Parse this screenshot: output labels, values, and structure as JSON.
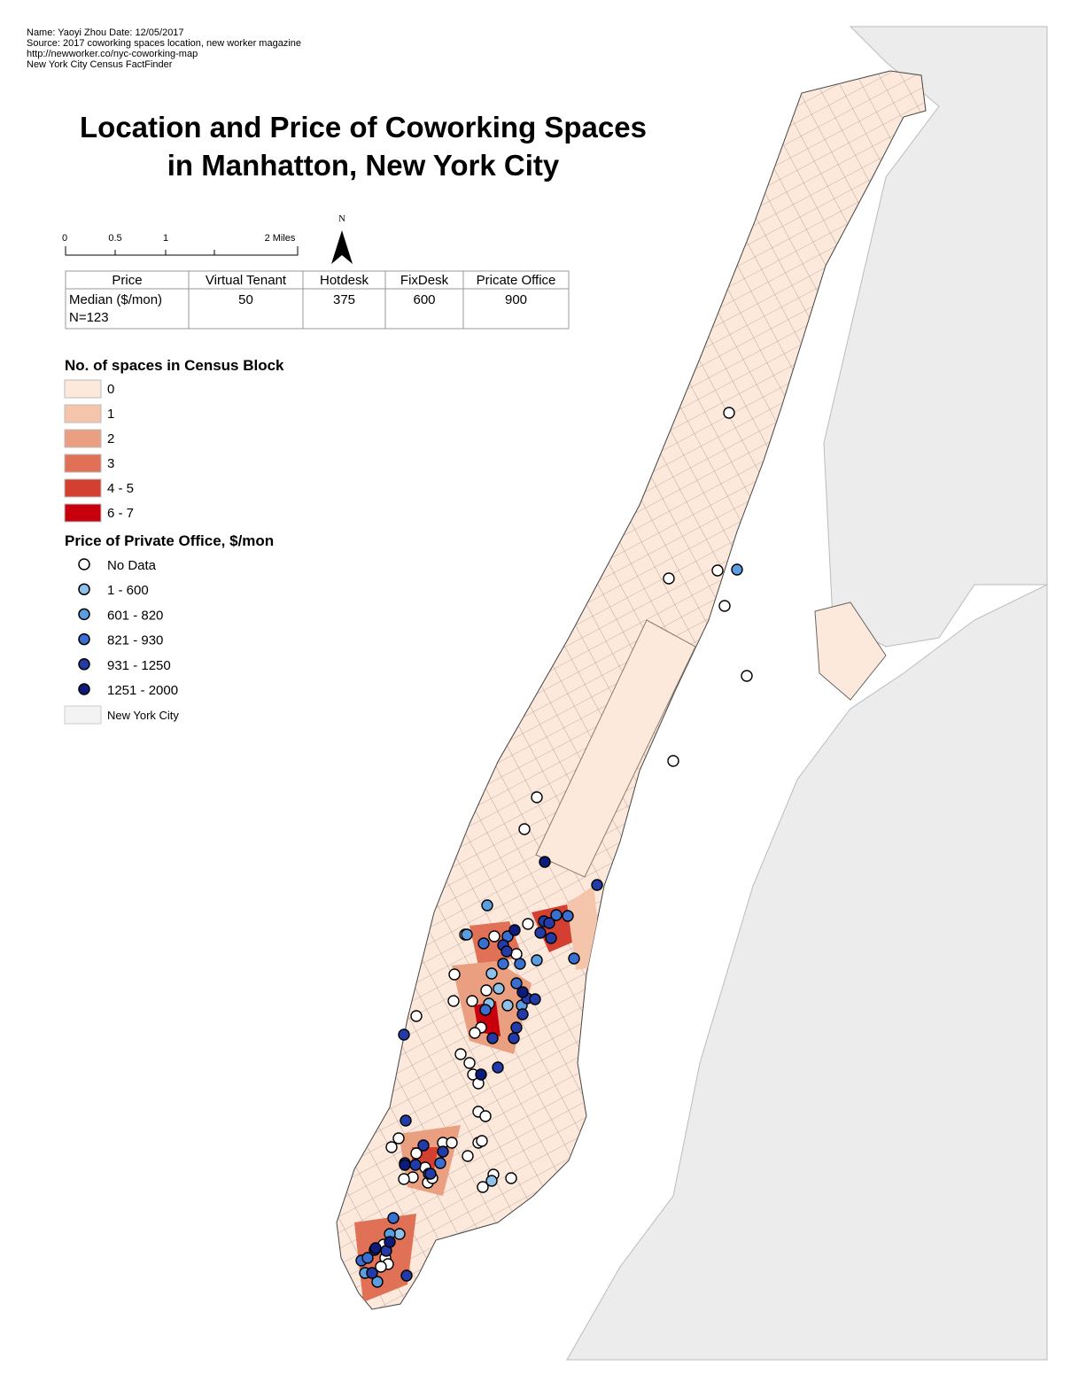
{
  "header": {
    "notes": [
      "Name: Yaoyi Zhou  Date: 12/05/2017",
      "Source: 2017 coworking spaces location, new worker magazine",
      "http://newworker.co/nyc-coworking-map",
      "New York City Census FactFinder"
    ]
  },
  "title": [
    "Location and Price of Coworking Spaces",
    "in Manhatton, New York City"
  ],
  "scale_bar": {
    "labels": [
      "0",
      "0.5",
      "1",
      "2 Miles"
    ]
  },
  "north_arrow": "N",
  "table": {
    "header": [
      "Price",
      "Virtual Tenant",
      "Hotdesk",
      "FixDesk",
      "Pricate Office"
    ],
    "rows": [
      [
        "Median ($/mon)",
        50,
        375,
        600,
        900
      ]
    ],
    "footnote": "N=123"
  },
  "legend_blocks": {
    "title": "No. of spaces in Census Block",
    "items": [
      {
        "label": "0",
        "color": "#fde9dc"
      },
      {
        "label": "1",
        "color": "#f4c5ab"
      },
      {
        "label": "2",
        "color": "#ea9f81"
      },
      {
        "label": "3",
        "color": "#e07056"
      },
      {
        "label": "4 - 5",
        "color": "#d33f30"
      },
      {
        "label": "6 - 7",
        "color": "#c8000e"
      }
    ]
  },
  "legend_price": {
    "title": "Price of Private Office, $/mon",
    "items": [
      {
        "label": "No Data",
        "color": "#ffffff"
      },
      {
        "label": "1 - 600",
        "color": "#8fc0e8"
      },
      {
        "label": "601 - 820",
        "color": "#5b9ee0"
      },
      {
        "label": "821 - 930",
        "color": "#3a6fd2"
      },
      {
        "label": "931 - 1250",
        "color": "#233ba8"
      },
      {
        "label": "1251 - 2000",
        "color": "#0e1a7c"
      }
    ],
    "base": {
      "label": "New York City",
      "color": "#f3f3f3"
    }
  }
}
